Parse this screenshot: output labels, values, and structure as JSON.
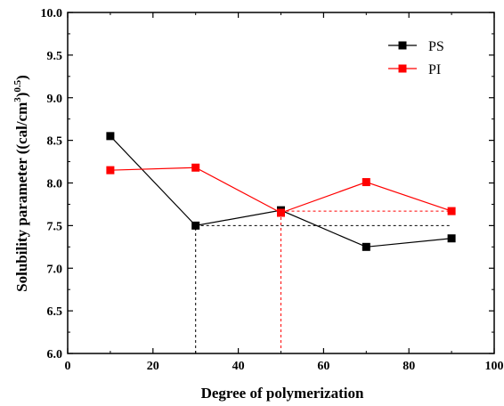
{
  "chart_data": {
    "type": "line",
    "title": "",
    "xlabel": "Degree of polymerization",
    "ylabel": "Solubility parameter ((cal/cm",
    "ylabel_sup": "3",
    "ylabel_close": ")",
    "ylabel_sup2": "0.5",
    "ylabel_end": ")",
    "xlim": [
      0,
      100
    ],
    "ylim": [
      6.0,
      10.0
    ],
    "x_ticks": [
      "0",
      "20",
      "40",
      "60",
      "80",
      "100"
    ],
    "y_ticks": [
      "6.0",
      "6.5",
      "7.0",
      "7.5",
      "8.0",
      "8.5",
      "9.0",
      "9.5",
      "10.0"
    ],
    "legend_position": "top-right",
    "grid": false,
    "series": [
      {
        "name": "PS",
        "color": "#000000",
        "x": [
          10,
          30,
          50,
          70,
          90
        ],
        "y": [
          8.55,
          7.5,
          7.68,
          7.25,
          7.35
        ]
      },
      {
        "name": "PI",
        "color": "#ff0000",
        "x": [
          10,
          30,
          50,
          70,
          90
        ],
        "y": [
          8.15,
          8.18,
          7.65,
          8.01,
          7.67
        ]
      }
    ],
    "reference_lines": [
      {
        "color": "#000000",
        "x": 30,
        "y": 7.5
      },
      {
        "color": "#ff0000",
        "x": 50,
        "y": 7.67
      }
    ]
  }
}
